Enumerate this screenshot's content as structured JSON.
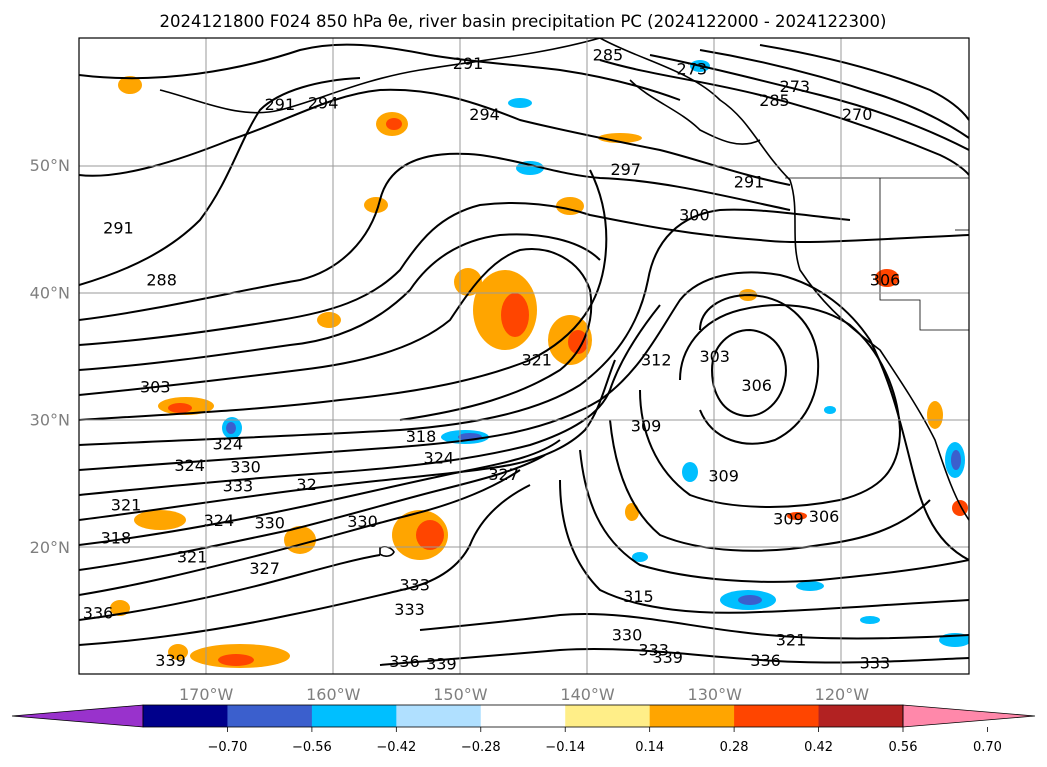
{
  "title": "2024121800 F024 850 hPa θe, river basin precipitation PC (2024122000 - 2024122300)",
  "map": {
    "lon_range": [
      -180,
      -110
    ],
    "lat_range": [
      10,
      60
    ],
    "gridlines": true,
    "lat_ticks": [
      {
        "lat": 50,
        "label": "50°N"
      },
      {
        "lat": 40,
        "label": "40°N"
      },
      {
        "lat": 30,
        "label": "30°N"
      },
      {
        "lat": 20,
        "label": "20°N"
      }
    ],
    "lon_ticks": [
      {
        "lon": -170,
        "label": "170°W"
      },
      {
        "lon": -160,
        "label": "160°W"
      },
      {
        "lon": -150,
        "label": "150°W"
      },
      {
        "lon": -140,
        "label": "140°W"
      },
      {
        "lon": -130,
        "label": "130°W"
      },
      {
        "lon": -120,
        "label": "120°W"
      }
    ]
  },
  "contour_labels": [
    {
      "text": "291",
      "lon": -149.4,
      "lat": 57.9
    },
    {
      "text": "291",
      "lon": -164.2,
      "lat": 54.7
    },
    {
      "text": "294",
      "lon": -160.8,
      "lat": 54.8
    },
    {
      "text": "294",
      "lon": -148.1,
      "lat": 53.9
    },
    {
      "text": "285",
      "lon": -138.4,
      "lat": 58.6
    },
    {
      "text": "273",
      "lon": -131.8,
      "lat": 57.5
    },
    {
      "text": "285",
      "lon": -125.3,
      "lat": 55.0
    },
    {
      "text": "273",
      "lon": -123.7,
      "lat": 56.1
    },
    {
      "text": "270",
      "lon": -118.8,
      "lat": 53.9
    },
    {
      "text": "297",
      "lon": -137.0,
      "lat": 49.6
    },
    {
      "text": "291",
      "lon": -127.3,
      "lat": 48.6
    },
    {
      "text": "300",
      "lon": -131.6,
      "lat": 46.0
    },
    {
      "text": "291",
      "lon": -176.9,
      "lat": 45.0
    },
    {
      "text": "288",
      "lon": -173.5,
      "lat": 40.9
    },
    {
      "text": "306",
      "lon": -116.6,
      "lat": 40.9
    },
    {
      "text": "303",
      "lon": -174.0,
      "lat": 32.5
    },
    {
      "text": "321",
      "lon": -144.0,
      "lat": 34.6
    },
    {
      "text": "303",
      "lon": -130.0,
      "lat": 34.9
    },
    {
      "text": "312",
      "lon": -134.6,
      "lat": 34.6
    },
    {
      "text": "306",
      "lon": -126.7,
      "lat": 32.6
    },
    {
      "text": "309",
      "lon": -135.4,
      "lat": 29.4
    },
    {
      "text": "318",
      "lon": -153.1,
      "lat": 28.6
    },
    {
      "text": "324",
      "lon": -171.3,
      "lat": 26.3
    },
    {
      "text": "324",
      "lon": -168.3,
      "lat": 28.0
    },
    {
      "text": "330",
      "lon": -166.9,
      "lat": 26.2
    },
    {
      "text": "333",
      "lon": -167.5,
      "lat": 24.7
    },
    {
      "text": "32",
      "lon": -162.1,
      "lat": 24.8
    },
    {
      "text": "324",
      "lon": -151.7,
      "lat": 26.9
    },
    {
      "text": "327",
      "lon": -146.6,
      "lat": 25.6
    },
    {
      "text": "309",
      "lon": -129.3,
      "lat": 25.5
    },
    {
      "text": "306",
      "lon": -121.4,
      "lat": 22.3
    },
    {
      "text": "309",
      "lon": -124.2,
      "lat": 22.1
    },
    {
      "text": "321",
      "lon": -176.3,
      "lat": 23.2
    },
    {
      "text": "324",
      "lon": -169.0,
      "lat": 22.0
    },
    {
      "text": "330",
      "lon": -165.0,
      "lat": 21.8
    },
    {
      "text": "330",
      "lon": -157.7,
      "lat": 21.9
    },
    {
      "text": "318",
      "lon": -177.1,
      "lat": 20.6
    },
    {
      "text": "321",
      "lon": -171.1,
      "lat": 19.1
    },
    {
      "text": "327",
      "lon": -165.4,
      "lat": 18.2
    },
    {
      "text": "315",
      "lon": -136.0,
      "lat": 16.0
    },
    {
      "text": "333",
      "lon": -153.6,
      "lat": 16.9
    },
    {
      "text": "333",
      "lon": -154.0,
      "lat": 15.0
    },
    {
      "text": "336",
      "lon": -178.5,
      "lat": 14.7
    },
    {
      "text": "330",
      "lon": -136.9,
      "lat": 13.0
    },
    {
      "text": "333",
      "lon": -134.8,
      "lat": 11.8
    },
    {
      "text": "321",
      "lon": -124.0,
      "lat": 12.6
    },
    {
      "text": "339",
      "lon": -172.8,
      "lat": 11.0
    },
    {
      "text": "336",
      "lon": -154.4,
      "lat": 10.9
    },
    {
      "text": "339",
      "lon": -151.5,
      "lat": 10.7
    },
    {
      "text": "339",
      "lon": -133.7,
      "lat": 11.2
    },
    {
      "text": "336",
      "lon": -126.0,
      "lat": 11.0
    },
    {
      "text": "333",
      "lon": -117.4,
      "lat": 10.8
    }
  ],
  "colorbar": {
    "colors": [
      "#9932cc",
      "#00008b",
      "#3b5fcd",
      "#00bfff",
      "#b0e0ff",
      "#ffffff",
      "#ffee88",
      "#ffa500",
      "#ff4500",
      "#b22222",
      "#ff88aa"
    ],
    "ticks": [
      "−0.70",
      "−0.56",
      "−0.42",
      "−0.28",
      "−0.14",
      "0.14",
      "0.28",
      "0.42",
      "0.56",
      "0.70"
    ]
  }
}
